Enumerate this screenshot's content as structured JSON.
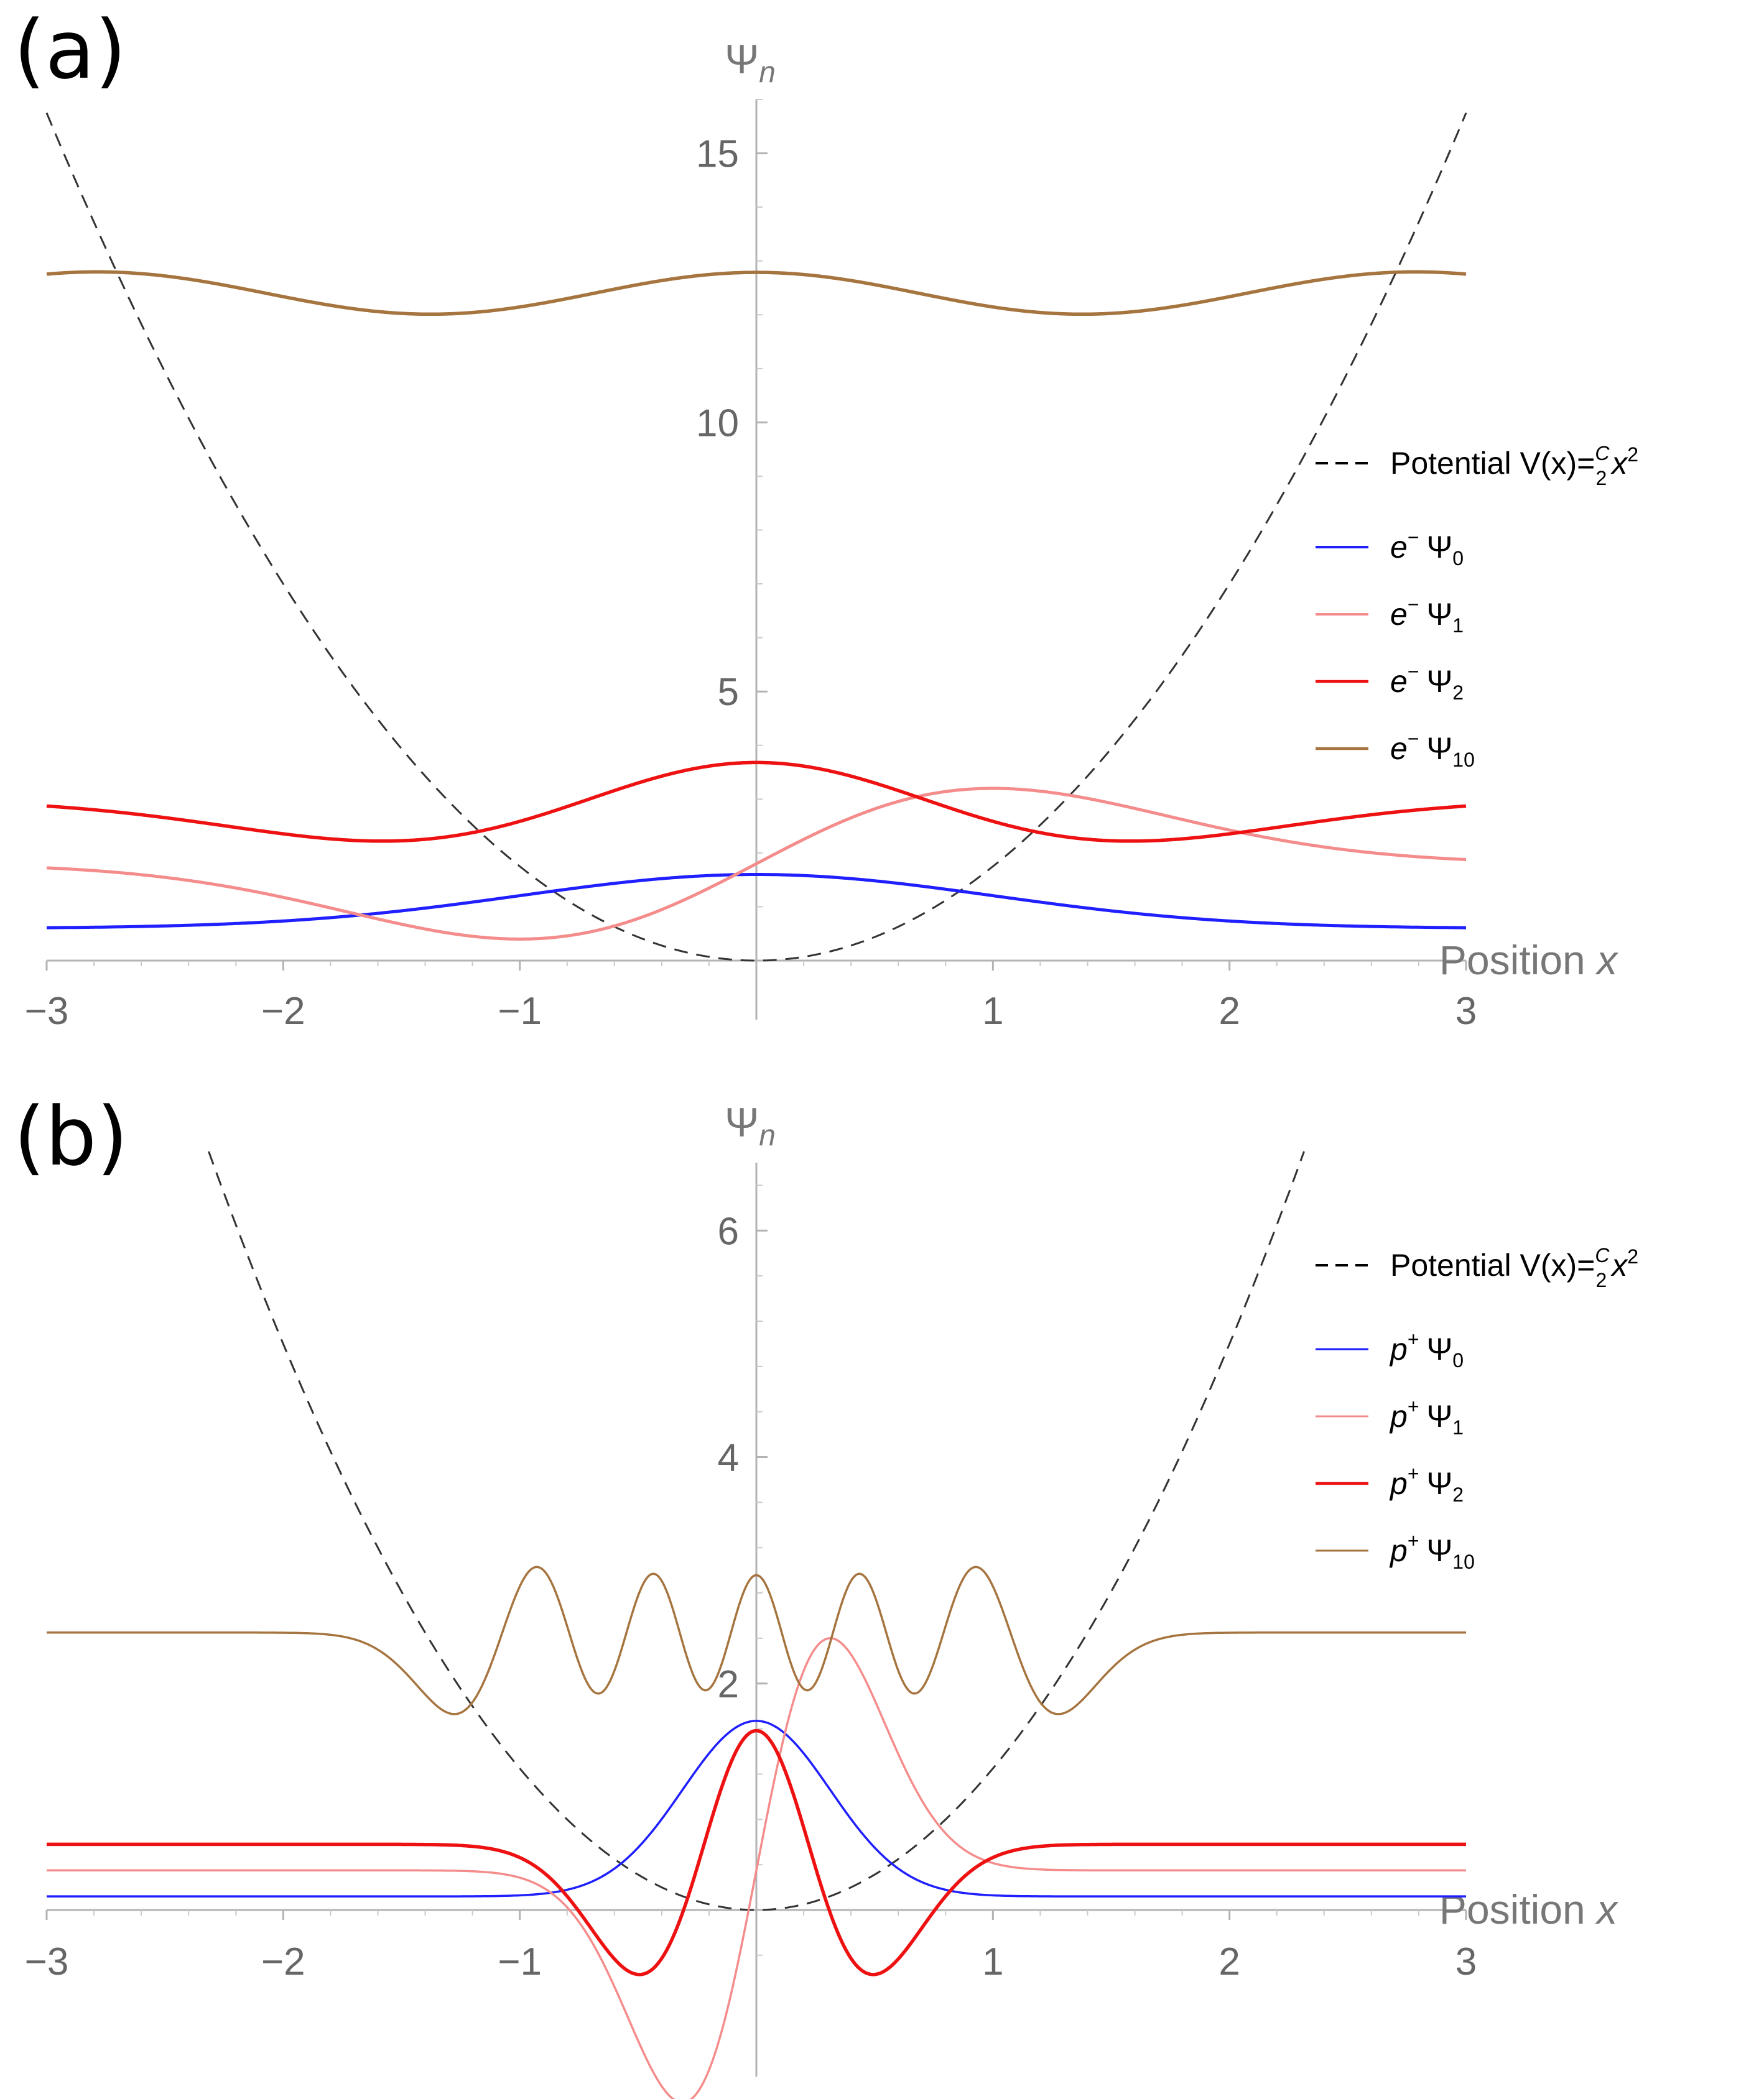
{
  "chart_data": [
    {
      "panel": "(a)",
      "type": "line",
      "xlabel": "Position x",
      "ylabel": "Ψn",
      "xlim": [
        -3,
        3
      ],
      "ylim": [
        0,
        16
      ],
      "x_ticks": [
        -3,
        -2,
        -1,
        1,
        2,
        3
      ],
      "x_tick_labels": [
        "−3",
        "−2",
        "−1",
        "1",
        "2",
        "3"
      ],
      "y_ticks": [
        5,
        10,
        15
      ],
      "y_tick_labels": [
        "5",
        "10",
        "15"
      ],
      "grid": false,
      "legend_position": "right",
      "potential": {
        "name": "Potential V(x)=C/2 x²",
        "coefficient": 3.5,
        "style": "dashed",
        "color": "#333333"
      },
      "series": [
        {
          "label_prefix": "e",
          "label_prefix_sup": "−",
          "label_sub": "0",
          "n": 0,
          "offset": 0.6,
          "alpha": 1.0,
          "amplitude": 1.0,
          "color": "#1f1fff",
          "width": 5
        },
        {
          "label_prefix": "e",
          "label_prefix_sup": "−",
          "label_sub": "1",
          "n": 1,
          "offset": 1.8,
          "alpha": 1.0,
          "amplitude": 1.4,
          "color": "#f58c8c",
          "width": 5
        },
        {
          "label_prefix": "e",
          "label_prefix_sup": "−",
          "label_sub": "2",
          "n": 2,
          "offset": 3.0,
          "alpha": 1.0,
          "amplitude": -0.78,
          "color": "#ee1111",
          "width": 5.5
        },
        {
          "label_prefix": "e",
          "label_prefix_sup": "−",
          "label_sub": "10",
          "n": 10,
          "offset": 12.4,
          "alpha": 0.5,
          "amplitude": -0.55,
          "color": "#a6743f",
          "width": 5.5
        }
      ]
    },
    {
      "panel": "(b)",
      "type": "line",
      "xlabel": "Position x",
      "ylabel": "Ψn",
      "xlim": [
        -3,
        3
      ],
      "ylim": [
        -0.7,
        6.6
      ],
      "x_ticks": [
        -3,
        -2,
        -1,
        1,
        2,
        3
      ],
      "x_tick_labels": [
        "−3",
        "−2",
        "−1",
        "1",
        "2",
        "3"
      ],
      "y_ticks": [
        2,
        4,
        6
      ],
      "y_tick_labels": [
        "2",
        "4",
        "6"
      ],
      "grid": false,
      "legend_position": "right",
      "potential": {
        "name": "Potential V(x)=C/2 x²",
        "coefficient": 2.5,
        "style": "dashed",
        "color": "#333333"
      },
      "series": [
        {
          "label_prefix": "p",
          "label_prefix_sup": "+",
          "label_sub": "0",
          "n": 0,
          "offset": 0.12,
          "alpha": 3.2,
          "amplitude": 1.55,
          "color": "#1f1fff",
          "width": 3.5
        },
        {
          "label_prefix": "p",
          "label_prefix_sup": "+",
          "label_sub": "1",
          "n": 1,
          "offset": 0.35,
          "alpha": 3.2,
          "amplitude": 2.05,
          "color": "#f58c8c",
          "width": 3.5
        },
        {
          "label_prefix": "p",
          "label_prefix_sup": "+",
          "label_sub": "2",
          "n": 2,
          "offset": 0.58,
          "alpha": 3.2,
          "amplitude": -1.15,
          "color": "#ee1111",
          "width": 5.5
        },
        {
          "label_prefix": "p",
          "label_prefix_sup": "+",
          "label_sub": "10",
          "n": 10,
          "offset": 2.45,
          "alpha": 3.2,
          "amplitude": -0.72,
          "color": "#a6743f",
          "width": 3.5
        }
      ]
    }
  ]
}
